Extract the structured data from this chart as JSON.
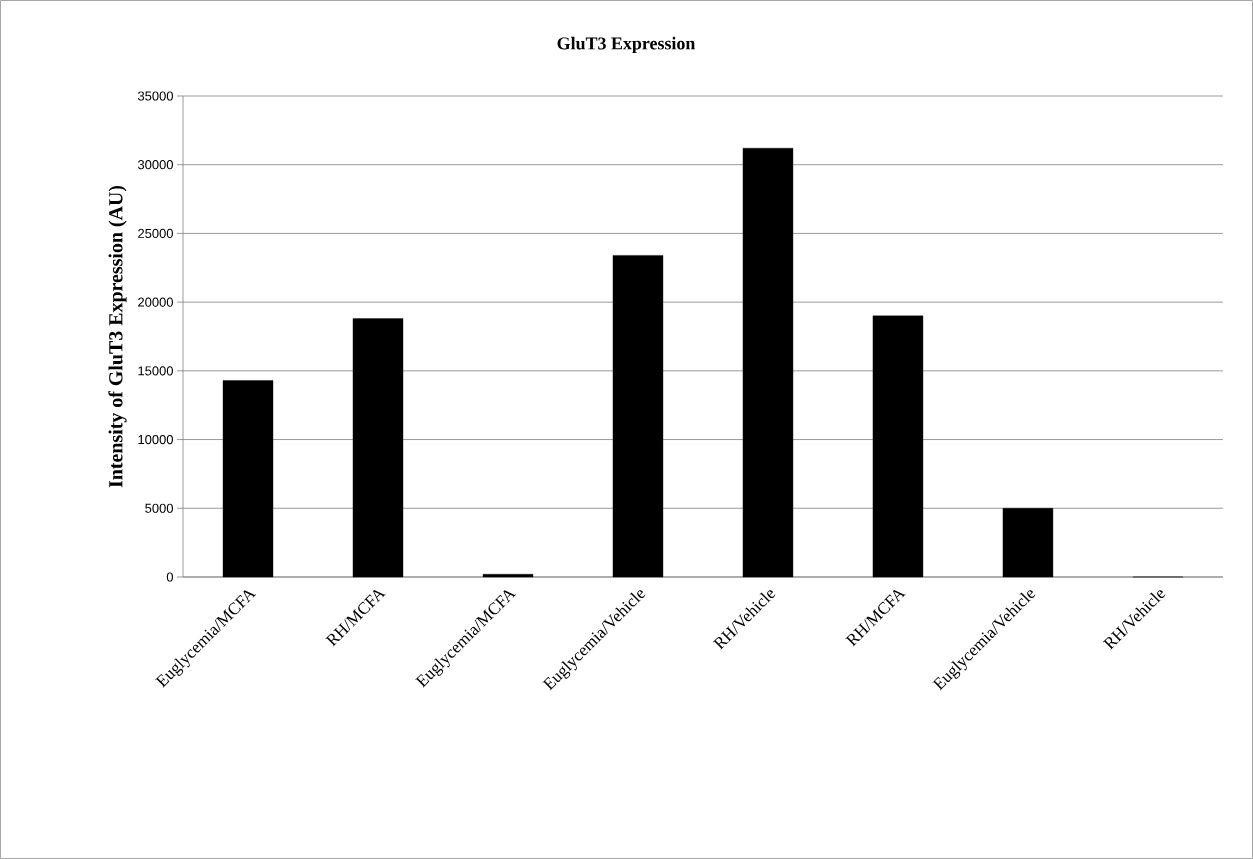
{
  "chart_data": {
    "type": "bar",
    "title": "GluT3 Expression",
    "ylabel": "Intensity of GluT3 Expression  (AU)",
    "categories": [
      "Euglycemia/MCFA",
      "RH/MCFA",
      "Euglycemia/MCFA",
      "Euglycemia/Vehicle",
      "RH/Vehicle",
      "RH/MCFA",
      "Euglycemia/Vehicle",
      "RH/Vehicle"
    ],
    "values": [
      14300,
      18800,
      200,
      23400,
      31200,
      19000,
      5000,
      0
    ],
    "color": "#000000",
    "ylim": [
      0,
      35000
    ],
    "yticks": [
      0,
      5000,
      10000,
      15000,
      20000,
      25000,
      30000,
      35000
    ],
    "grid": "y"
  }
}
